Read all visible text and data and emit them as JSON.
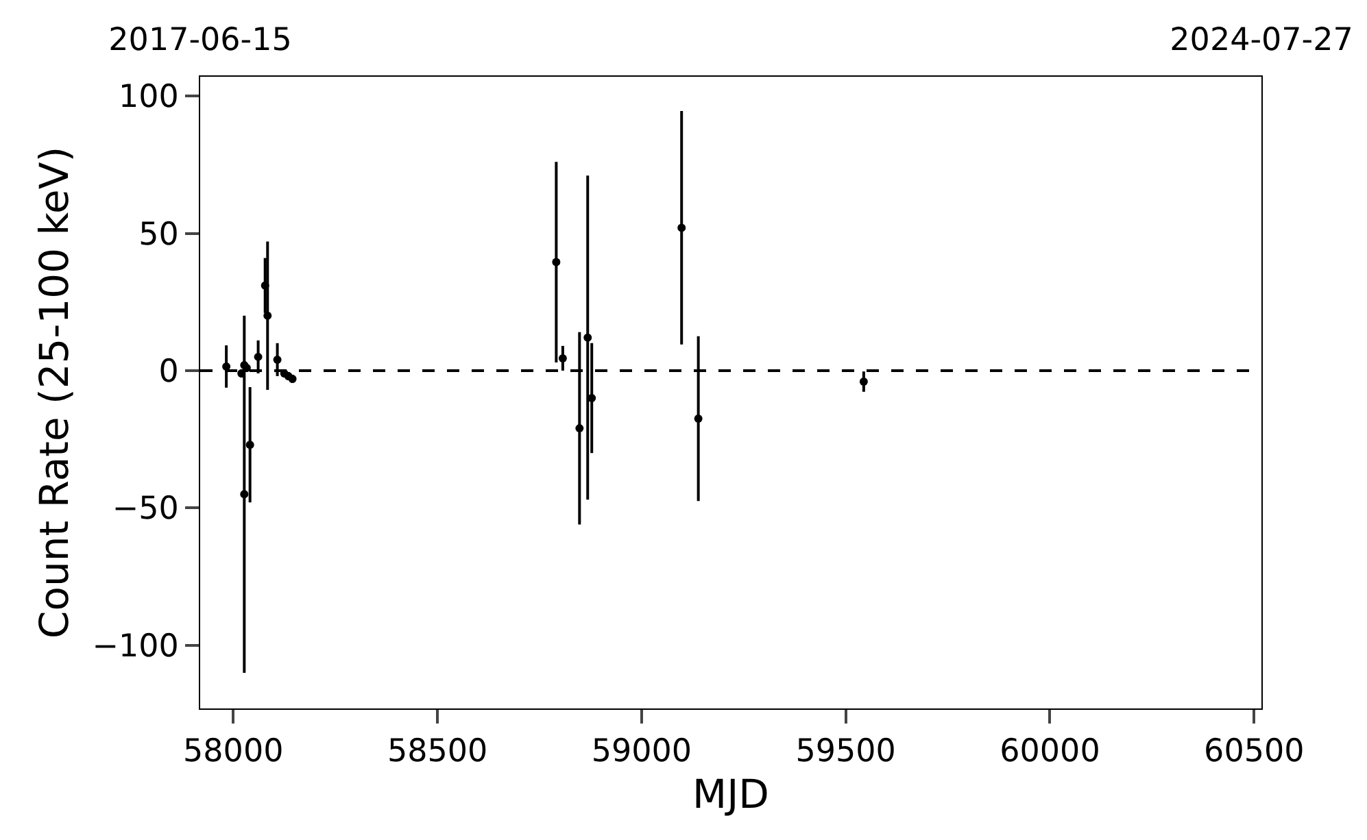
{
  "chart_data": {
    "type": "scatter",
    "xlabel": "MJD",
    "ylabel": "Count Rate (25-100 keV)",
    "x": [
      57983,
      58020,
      58027,
      58027,
      58033,
      58041,
      58061,
      58078,
      58084,
      58108,
      58125,
      58135,
      58145,
      58791,
      58807,
      58848,
      58868,
      58878,
      59098,
      59139,
      59544
    ],
    "values": [
      1.5,
      -1,
      2,
      -45,
      1,
      -27,
      5,
      31,
      20,
      4,
      -1,
      -2,
      -3,
      39.5,
      4.5,
      -21,
      12,
      -10,
      52,
      -17.5,
      -4
    ],
    "errors": [
      7.7,
      1.5,
      1.5,
      65,
      1.5,
      21,
      6,
      10,
      27,
      6,
      1.5,
      1.5,
      1.5,
      36.5,
      4.5,
      35,
      59,
      20,
      42.5,
      30,
      3.7
    ],
    "color": "#000000",
    "marker": "circle",
    "grid": false,
    "xlim": [
      57919,
      60518
    ],
    "xticks": [
      58000,
      58500,
      59000,
      59500,
      60000,
      60500
    ],
    "x2lim": [
      "2017-06-15",
      "2024-07-27"
    ],
    "x2ticks": [
      "2017-06-15",
      "2024-07-27"
    ],
    "ylim": [
      -123,
      107
    ],
    "yticks": [
      -100,
      -50,
      0,
      50,
      100
    ],
    "ref_lines": [
      {
        "axis": "y",
        "value": 0,
        "color": "#000000",
        "line_style": "dashed"
      }
    ]
  }
}
